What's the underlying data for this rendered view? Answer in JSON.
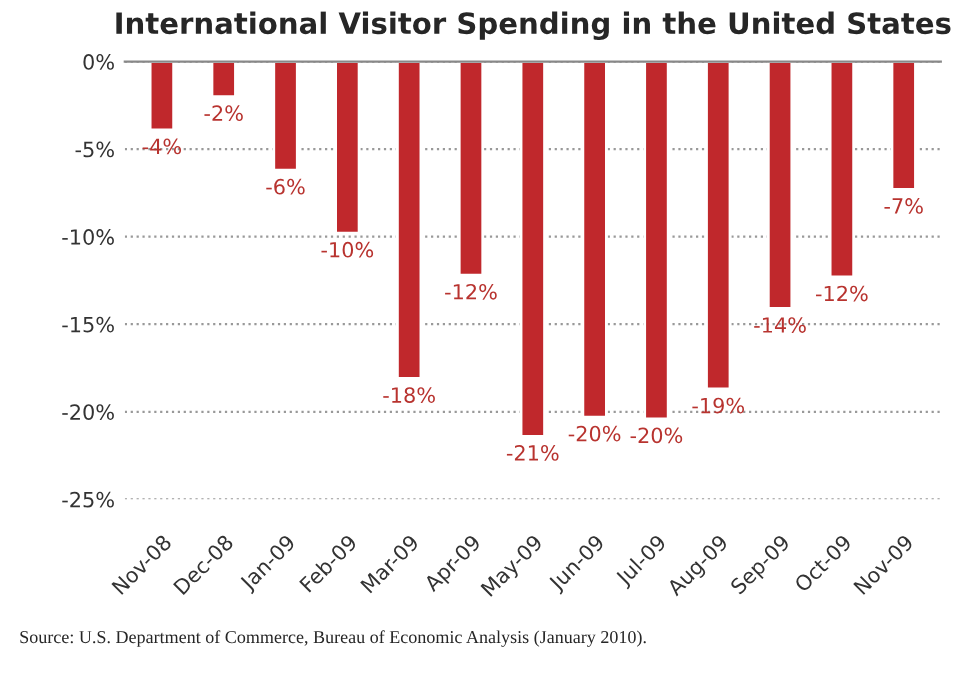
{
  "chart_data": {
    "type": "bar",
    "title": "International Visitor Spending in the United States",
    "categories": [
      "Nov-08",
      "Dec-08",
      "Jan-09",
      "Feb-09",
      "Mar-09",
      "Apr-09",
      "May-09",
      "Jun-09",
      "Jul-09",
      "Aug-09",
      "Sep-09",
      "Oct-09",
      "Nov-09"
    ],
    "values": [
      -3.9,
      -2.0,
      -6.2,
      -9.8,
      -18.1,
      -12.2,
      -21.4,
      -20.3,
      -20.4,
      -18.7,
      -14.1,
      -12.3,
      -7.3
    ],
    "value_labels": [
      "-4%",
      "-2%",
      "-6%",
      "-10%",
      "-18%",
      "-12%",
      "-21%",
      "-20%",
      "-20%",
      "-19%",
      "-14%",
      "-12%",
      "-7%"
    ],
    "color": "#c0282c",
    "ylim": [
      -25,
      0
    ],
    "yticks": [
      {
        "value": -25,
        "label": "-25%"
      },
      {
        "value": -20,
        "label": "-20%"
      },
      {
        "value": -15,
        "label": "-15%"
      },
      {
        "value": -10,
        "label": "-10%"
      },
      {
        "value": -5,
        "label": "-5%"
      },
      {
        "value": 0,
        "label": "0%"
      }
    ],
    "grid": "y",
    "legend": false,
    "annotations": [
      "Source: U.S. Department of Commerce, Bureau of Economic Analysis (January 2010)."
    ]
  }
}
